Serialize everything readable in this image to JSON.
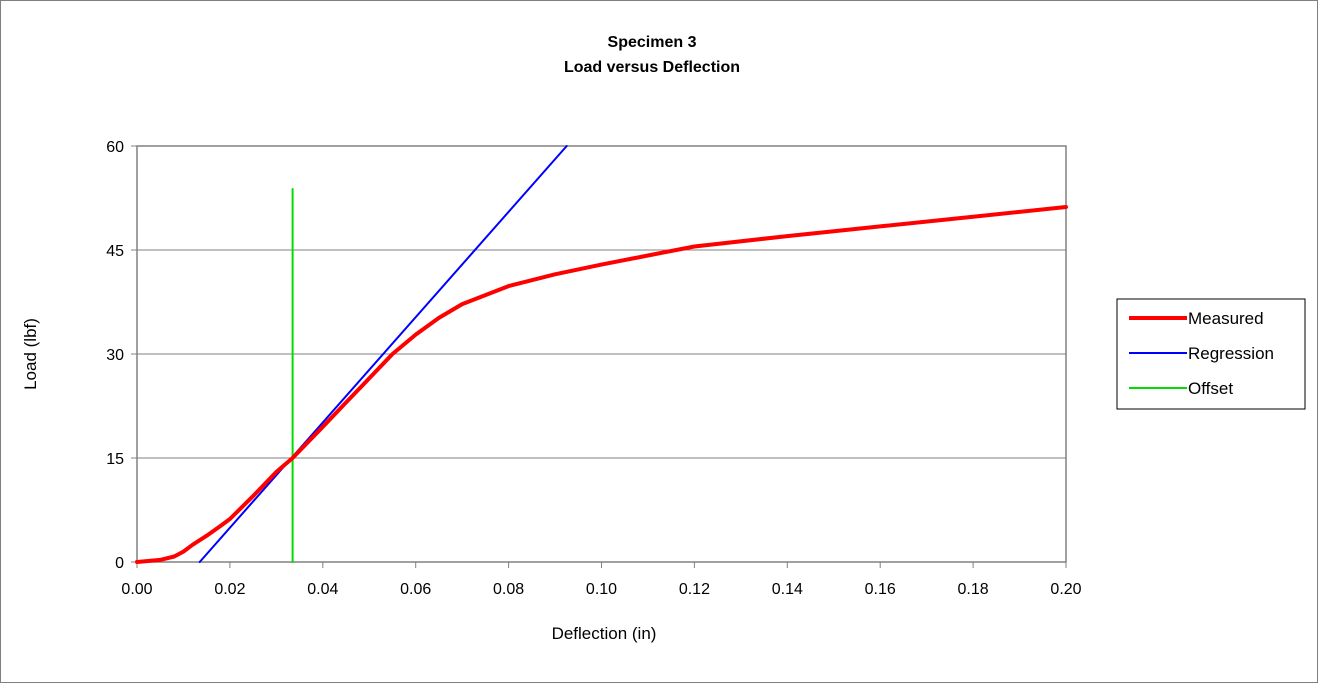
{
  "chart_data": {
    "type": "line",
    "title": [
      "Specimen 3",
      "Load versus Deflection"
    ],
    "xlabel": "Deflection (in)",
    "ylabel": "Load (lbf)",
    "xlim": [
      0,
      0.2
    ],
    "ylim": [
      0,
      60
    ],
    "x_ticks": [
      "0.00",
      "0.02",
      "0.04",
      "0.06",
      "0.08",
      "0.10",
      "0.12",
      "0.14",
      "0.16",
      "0.18",
      "0.20"
    ],
    "y_ticks": [
      "0",
      "15",
      "30",
      "45",
      "60"
    ],
    "grid": "horizontal",
    "legend_position": "right",
    "series": [
      {
        "name": "Measured",
        "color": "#ff0000",
        "x": [
          0.0,
          0.005,
          0.008,
          0.01,
          0.012,
          0.015,
          0.018,
          0.02,
          0.025,
          0.03,
          0.0335,
          0.04,
          0.045,
          0.05,
          0.055,
          0.06,
          0.065,
          0.07,
          0.08,
          0.09,
          0.1,
          0.11,
          0.12,
          0.14,
          0.16,
          0.18,
          0.2
        ],
        "y": [
          0.0,
          0.3,
          0.8,
          1.5,
          2.5,
          3.8,
          5.2,
          6.2,
          9.5,
          13.0,
          15.0,
          19.5,
          23.0,
          26.5,
          30.0,
          32.8,
          35.2,
          37.2,
          39.8,
          41.5,
          42.9,
          44.2,
          45.5,
          47.0,
          48.4,
          49.8,
          51.2
        ]
      },
      {
        "name": "Regression",
        "color": "#0000ff",
        "x": [
          0.0135,
          0.0925
        ],
        "y": [
          0.0,
          60.0
        ]
      },
      {
        "name": "Offset",
        "color": "#00dd00",
        "x": [
          0.0335,
          0.0335
        ],
        "y": [
          0.0,
          53.8
        ]
      }
    ]
  }
}
